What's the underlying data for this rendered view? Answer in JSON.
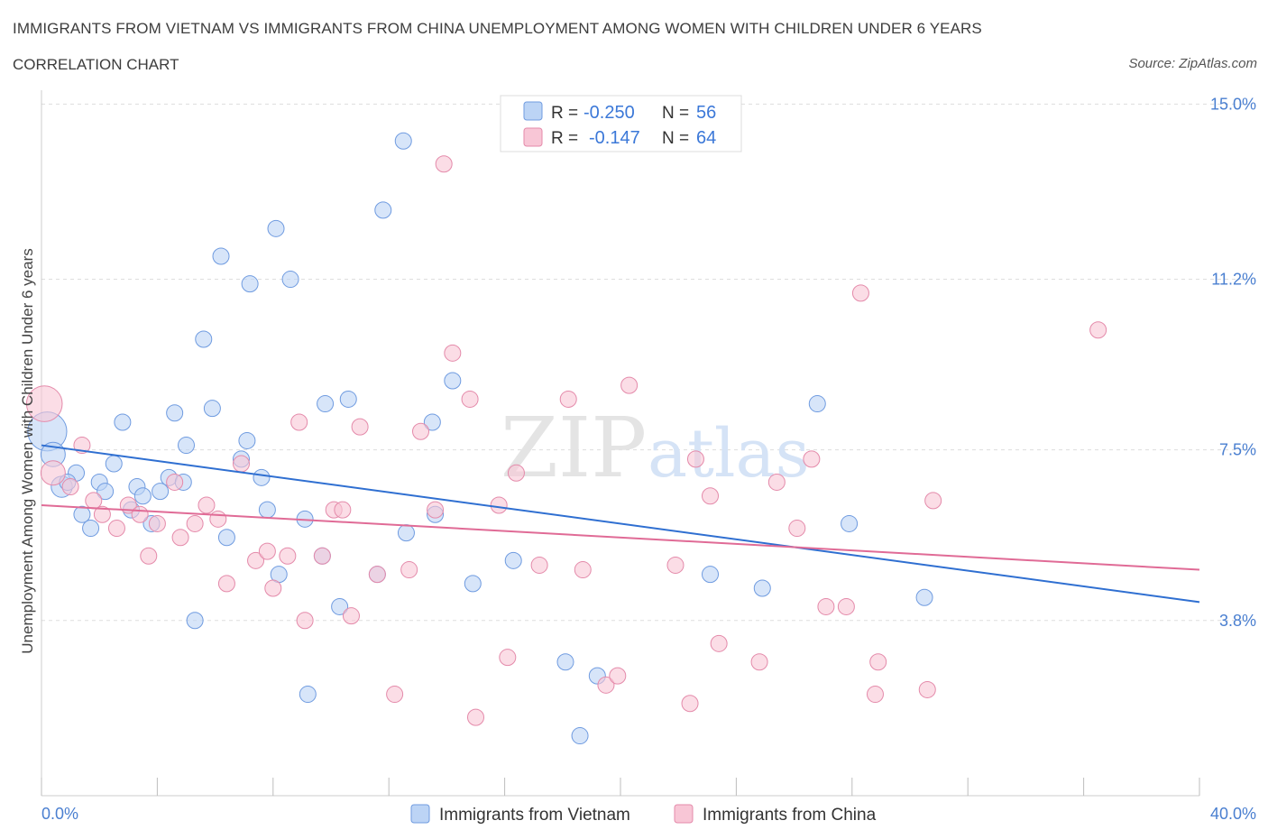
{
  "header": {
    "title": "IMMIGRANTS FROM VIETNAM VS IMMIGRANTS FROM CHINA UNEMPLOYMENT AMONG WOMEN WITH CHILDREN UNDER 6 YEARS",
    "subtitle": "CORRELATION CHART",
    "source": "Source: ZipAtlas.com"
  },
  "watermark": {
    "zip": "ZIP",
    "atlas": "atlas"
  },
  "colors": {
    "vietnam_fill": "#bcd4f5",
    "vietnam_stroke": "#6f9be0",
    "vietnam_line": "#2f6fd1",
    "china_fill": "#f8c6d6",
    "china_stroke": "#e48aaa",
    "china_line": "#e06b96",
    "axis_text": "#4a7fd0",
    "grid": "#dddddd"
  },
  "legend": {
    "rows": [
      {
        "r_label": "R =",
        "r_value": "-0.250",
        "n_label": "N =",
        "n_value": "56",
        "series": "vietnam"
      },
      {
        "r_label": "R =",
        "r_value": "-0.147",
        "n_label": "N =",
        "n_value": "64",
        "series": "china"
      }
    ],
    "bottom": [
      {
        "label": "Immigrants from Vietnam",
        "series": "vietnam"
      },
      {
        "label": "Immigrants from China",
        "series": "china"
      }
    ]
  },
  "chart_data": {
    "type": "scatter",
    "title": "",
    "xlabel": "",
    "ylabel": "Unemployment Among Women with Children Under 6 years",
    "xlim": [
      0,
      40
    ],
    "ylim": [
      0,
      15.3
    ],
    "x_tick_labels": [
      {
        "value": 0,
        "label": "0.0%"
      },
      {
        "value": 40,
        "label": "40.0%"
      }
    ],
    "y_tick_labels": [
      {
        "value": 3.8,
        "label": "3.8%"
      },
      {
        "value": 7.5,
        "label": "7.5%"
      },
      {
        "value": 11.2,
        "label": "11.2%"
      },
      {
        "value": 15.0,
        "label": "15.0%"
      }
    ],
    "grid": true,
    "legend_position": "top-center",
    "series": [
      {
        "name": "Immigrants from Vietnam",
        "key": "vietnam",
        "trend": {
          "x": [
            0,
            40
          ],
          "y": [
            7.6,
            4.2
          ]
        },
        "points": [
          {
            "x": 0.2,
            "y": 7.9,
            "s": 2.4
          },
          {
            "x": 0.4,
            "y": 7.4,
            "s": 1.5
          },
          {
            "x": 0.7,
            "y": 6.7,
            "s": 1.3
          },
          {
            "x": 1.2,
            "y": 7.0,
            "s": 1
          },
          {
            "x": 0.9,
            "y": 6.8,
            "s": 1
          },
          {
            "x": 1.4,
            "y": 6.1,
            "s": 1
          },
          {
            "x": 1.7,
            "y": 5.8,
            "s": 1
          },
          {
            "x": 2.0,
            "y": 6.8,
            "s": 1
          },
          {
            "x": 2.2,
            "y": 6.6,
            "s": 1
          },
          {
            "x": 2.5,
            "y": 7.2,
            "s": 1
          },
          {
            "x": 2.8,
            "y": 8.1,
            "s": 1
          },
          {
            "x": 3.1,
            "y": 6.2,
            "s": 1
          },
          {
            "x": 3.3,
            "y": 6.7,
            "s": 1
          },
          {
            "x": 3.5,
            "y": 6.5,
            "s": 1
          },
          {
            "x": 3.8,
            "y": 5.9,
            "s": 1
          },
          {
            "x": 4.1,
            "y": 6.6,
            "s": 1
          },
          {
            "x": 4.4,
            "y": 6.9,
            "s": 1
          },
          {
            "x": 4.6,
            "y": 8.3,
            "s": 1
          },
          {
            "x": 4.9,
            "y": 6.8,
            "s": 1
          },
          {
            "x": 5.0,
            "y": 7.6,
            "s": 1
          },
          {
            "x": 5.3,
            "y": 3.8,
            "s": 1
          },
          {
            "x": 5.6,
            "y": 9.9,
            "s": 1
          },
          {
            "x": 5.9,
            "y": 8.4,
            "s": 1
          },
          {
            "x": 6.2,
            "y": 11.7,
            "s": 1
          },
          {
            "x": 6.4,
            "y": 5.6,
            "s": 1
          },
          {
            "x": 6.9,
            "y": 7.3,
            "s": 1
          },
          {
            "x": 7.1,
            "y": 7.7,
            "s": 1
          },
          {
            "x": 7.2,
            "y": 11.1,
            "s": 1
          },
          {
            "x": 7.6,
            "y": 6.9,
            "s": 1
          },
          {
            "x": 7.8,
            "y": 6.2,
            "s": 1
          },
          {
            "x": 8.1,
            "y": 12.3,
            "s": 1
          },
          {
            "x": 8.2,
            "y": 4.8,
            "s": 1
          },
          {
            "x": 8.6,
            "y": 11.2,
            "s": 1
          },
          {
            "x": 9.1,
            "y": 6.0,
            "s": 1
          },
          {
            "x": 9.2,
            "y": 2.2,
            "s": 1
          },
          {
            "x": 9.7,
            "y": 5.2,
            "s": 1
          },
          {
            "x": 9.8,
            "y": 8.5,
            "s": 1
          },
          {
            "x": 10.3,
            "y": 4.1,
            "s": 1
          },
          {
            "x": 10.6,
            "y": 8.6,
            "s": 1
          },
          {
            "x": 11.6,
            "y": 4.8,
            "s": 1
          },
          {
            "x": 11.8,
            "y": 12.7,
            "s": 1
          },
          {
            "x": 12.5,
            "y": 14.2,
            "s": 1
          },
          {
            "x": 12.6,
            "y": 5.7,
            "s": 1
          },
          {
            "x": 13.5,
            "y": 8.1,
            "s": 1
          },
          {
            "x": 13.6,
            "y": 6.1,
            "s": 1
          },
          {
            "x": 14.2,
            "y": 9.0,
            "s": 1
          },
          {
            "x": 14.9,
            "y": 4.6,
            "s": 1
          },
          {
            "x": 16.3,
            "y": 5.1,
            "s": 1
          },
          {
            "x": 18.1,
            "y": 2.9,
            "s": 1
          },
          {
            "x": 18.6,
            "y": 1.3,
            "s": 1
          },
          {
            "x": 19.2,
            "y": 2.6,
            "s": 1
          },
          {
            "x": 23.1,
            "y": 4.8,
            "s": 1
          },
          {
            "x": 24.9,
            "y": 4.5,
            "s": 1
          },
          {
            "x": 26.8,
            "y": 8.5,
            "s": 1
          },
          {
            "x": 27.9,
            "y": 5.9,
            "s": 1
          },
          {
            "x": 30.5,
            "y": 4.3,
            "s": 1
          }
        ]
      },
      {
        "name": "Immigrants from China",
        "key": "china",
        "trend": {
          "x": [
            0,
            40
          ],
          "y": [
            6.3,
            4.9
          ]
        },
        "points": [
          {
            "x": 0.1,
            "y": 8.5,
            "s": 2.2
          },
          {
            "x": 0.4,
            "y": 7.0,
            "s": 1.5
          },
          {
            "x": 1.0,
            "y": 6.7,
            "s": 1
          },
          {
            "x": 1.4,
            "y": 7.6,
            "s": 1
          },
          {
            "x": 1.8,
            "y": 6.4,
            "s": 1
          },
          {
            "x": 2.1,
            "y": 6.1,
            "s": 1
          },
          {
            "x": 2.6,
            "y": 5.8,
            "s": 1
          },
          {
            "x": 3.0,
            "y": 6.3,
            "s": 1
          },
          {
            "x": 3.4,
            "y": 6.1,
            "s": 1
          },
          {
            "x": 3.7,
            "y": 5.2,
            "s": 1
          },
          {
            "x": 4.0,
            "y": 5.9,
            "s": 1
          },
          {
            "x": 4.6,
            "y": 6.8,
            "s": 1
          },
          {
            "x": 4.8,
            "y": 5.6,
            "s": 1
          },
          {
            "x": 5.3,
            "y": 5.9,
            "s": 1
          },
          {
            "x": 5.7,
            "y": 6.3,
            "s": 1
          },
          {
            "x": 6.1,
            "y": 6.0,
            "s": 1
          },
          {
            "x": 6.4,
            "y": 4.6,
            "s": 1
          },
          {
            "x": 6.9,
            "y": 7.2,
            "s": 1
          },
          {
            "x": 7.4,
            "y": 5.1,
            "s": 1
          },
          {
            "x": 7.8,
            "y": 5.3,
            "s": 1
          },
          {
            "x": 8.0,
            "y": 4.5,
            "s": 1
          },
          {
            "x": 8.5,
            "y": 5.2,
            "s": 1
          },
          {
            "x": 8.9,
            "y": 8.1,
            "s": 1
          },
          {
            "x": 9.1,
            "y": 3.8,
            "s": 1
          },
          {
            "x": 9.7,
            "y": 5.2,
            "s": 1
          },
          {
            "x": 10.1,
            "y": 6.2,
            "s": 1
          },
          {
            "x": 10.4,
            "y": 6.2,
            "s": 1
          },
          {
            "x": 10.7,
            "y": 3.9,
            "s": 1
          },
          {
            "x": 11.0,
            "y": 8.0,
            "s": 1
          },
          {
            "x": 11.6,
            "y": 4.8,
            "s": 1
          },
          {
            "x": 12.2,
            "y": 2.2,
            "s": 1
          },
          {
            "x": 12.7,
            "y": 4.9,
            "s": 1
          },
          {
            "x": 13.1,
            "y": 7.9,
            "s": 1
          },
          {
            "x": 13.6,
            "y": 6.2,
            "s": 1
          },
          {
            "x": 13.9,
            "y": 13.7,
            "s": 1
          },
          {
            "x": 14.2,
            "y": 9.6,
            "s": 1
          },
          {
            "x": 14.8,
            "y": 8.6,
            "s": 1
          },
          {
            "x": 15.0,
            "y": 1.7,
            "s": 1
          },
          {
            "x": 15.8,
            "y": 6.3,
            "s": 1
          },
          {
            "x": 16.1,
            "y": 3.0,
            "s": 1
          },
          {
            "x": 16.4,
            "y": 7.0,
            "s": 1
          },
          {
            "x": 17.2,
            "y": 5.0,
            "s": 1
          },
          {
            "x": 18.2,
            "y": 8.6,
            "s": 1
          },
          {
            "x": 18.7,
            "y": 4.9,
            "s": 1
          },
          {
            "x": 19.5,
            "y": 2.4,
            "s": 1
          },
          {
            "x": 19.9,
            "y": 2.6,
            "s": 1
          },
          {
            "x": 20.3,
            "y": 8.9,
            "s": 1
          },
          {
            "x": 21.9,
            "y": 5.0,
            "s": 1
          },
          {
            "x": 22.4,
            "y": 2.0,
            "s": 1
          },
          {
            "x": 22.6,
            "y": 7.3,
            "s": 1
          },
          {
            "x": 23.1,
            "y": 6.5,
            "s": 1
          },
          {
            "x": 23.4,
            "y": 3.3,
            "s": 1
          },
          {
            "x": 24.8,
            "y": 2.9,
            "s": 1
          },
          {
            "x": 25.4,
            "y": 6.8,
            "s": 1
          },
          {
            "x": 26.1,
            "y": 5.8,
            "s": 1
          },
          {
            "x": 26.6,
            "y": 7.3,
            "s": 1
          },
          {
            "x": 27.1,
            "y": 4.1,
            "s": 1
          },
          {
            "x": 27.8,
            "y": 4.1,
            "s": 1
          },
          {
            "x": 28.3,
            "y": 10.9,
            "s": 1
          },
          {
            "x": 28.9,
            "y": 2.9,
            "s": 1
          },
          {
            "x": 28.8,
            "y": 2.2,
            "s": 1
          },
          {
            "x": 30.6,
            "y": 2.3,
            "s": 1
          },
          {
            "x": 30.8,
            "y": 6.4,
            "s": 1
          },
          {
            "x": 36.5,
            "y": 10.1,
            "s": 1
          }
        ]
      }
    ]
  }
}
